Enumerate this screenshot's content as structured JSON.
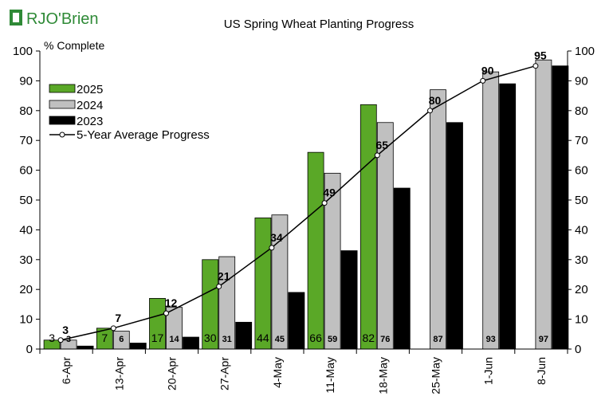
{
  "logo": {
    "text": "RJO'Brien"
  },
  "chart_data": {
    "type": "bar",
    "title": "US Spring Wheat Planting Progress",
    "ylabel": "% Complete",
    "ylim": [
      0,
      100
    ],
    "yticks": [
      0,
      10,
      20,
      30,
      40,
      50,
      60,
      70,
      80,
      90,
      100
    ],
    "categories": [
      "6-Apr",
      "13-Apr",
      "20-Apr",
      "27-Apr",
      "4-May",
      "11-May",
      "18-May",
      "25-May",
      "1-Jun",
      "8-Jun"
    ],
    "series": [
      {
        "name": "2025",
        "type": "bar",
        "color": "#5aa827",
        "values": [
          3,
          7,
          17,
          30,
          44,
          66,
          82,
          null,
          null,
          null
        ]
      },
      {
        "name": "2024",
        "type": "bar",
        "color": "#c0c0c0",
        "values": [
          3,
          6,
          14,
          31,
          45,
          59,
          76,
          87,
          93,
          97
        ]
      },
      {
        "name": "2023",
        "type": "bar",
        "color": "#000000",
        "values": [
          1,
          2,
          4,
          9,
          19,
          33,
          54,
          76,
          89,
          95
        ]
      },
      {
        "name": "5-Year Average Progress",
        "type": "line",
        "color": "#000000",
        "values": [
          3,
          7,
          12,
          21,
          34,
          49,
          65,
          80,
          90,
          95
        ]
      }
    ],
    "legend": {
      "placement": "top-left"
    },
    "grid": false
  }
}
